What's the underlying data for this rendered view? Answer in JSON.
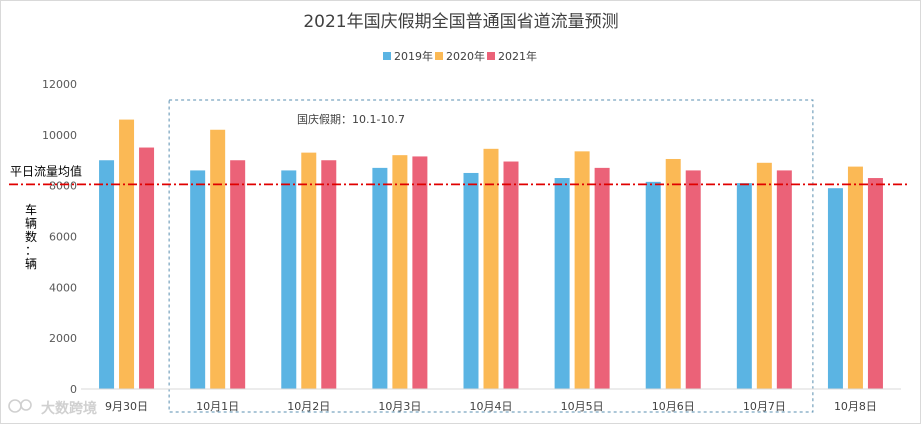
{
  "chart_data": {
    "type": "bar",
    "title": "2021年国庆假期全国普通国省道流量预测",
    "categories": [
      "9月30日",
      "10月1日",
      "10月2日",
      "10月3日",
      "10月4日",
      "10月5日",
      "10月6日",
      "10月7日",
      "10月8日"
    ],
    "series": [
      {
        "name": "2019年",
        "color": "#5bb4e3",
        "values": [
          9000,
          8600,
          8600,
          8700,
          8500,
          8300,
          8150,
          8100,
          7900
        ]
      },
      {
        "name": "2020年",
        "color": "#fbb955",
        "values": [
          10600,
          10200,
          9300,
          9200,
          9450,
          9350,
          9050,
          8900,
          8750
        ]
      },
      {
        "name": "2021年",
        "color": "#eb6278",
        "values": [
          9500,
          9000,
          9000,
          9150,
          8950,
          8700,
          8600,
          8600,
          8300
        ]
      }
    ],
    "ylim": [
      0,
      12000
    ],
    "yticks": [
      0,
      2000,
      4000,
      6000,
      8000,
      10000,
      12000
    ],
    "ylabel": "车辆数：辆",
    "xlabel": "",
    "legend": "top-center",
    "grid": false,
    "reference_line": {
      "label": "平日流量均值",
      "value": 8050,
      "color": "#e00000"
    },
    "holiday_box": {
      "label": "国庆假期：10.1-10.7",
      "from_category": 1,
      "to_category": 7
    }
  },
  "watermark": {
    "text": "大数跨境"
  }
}
